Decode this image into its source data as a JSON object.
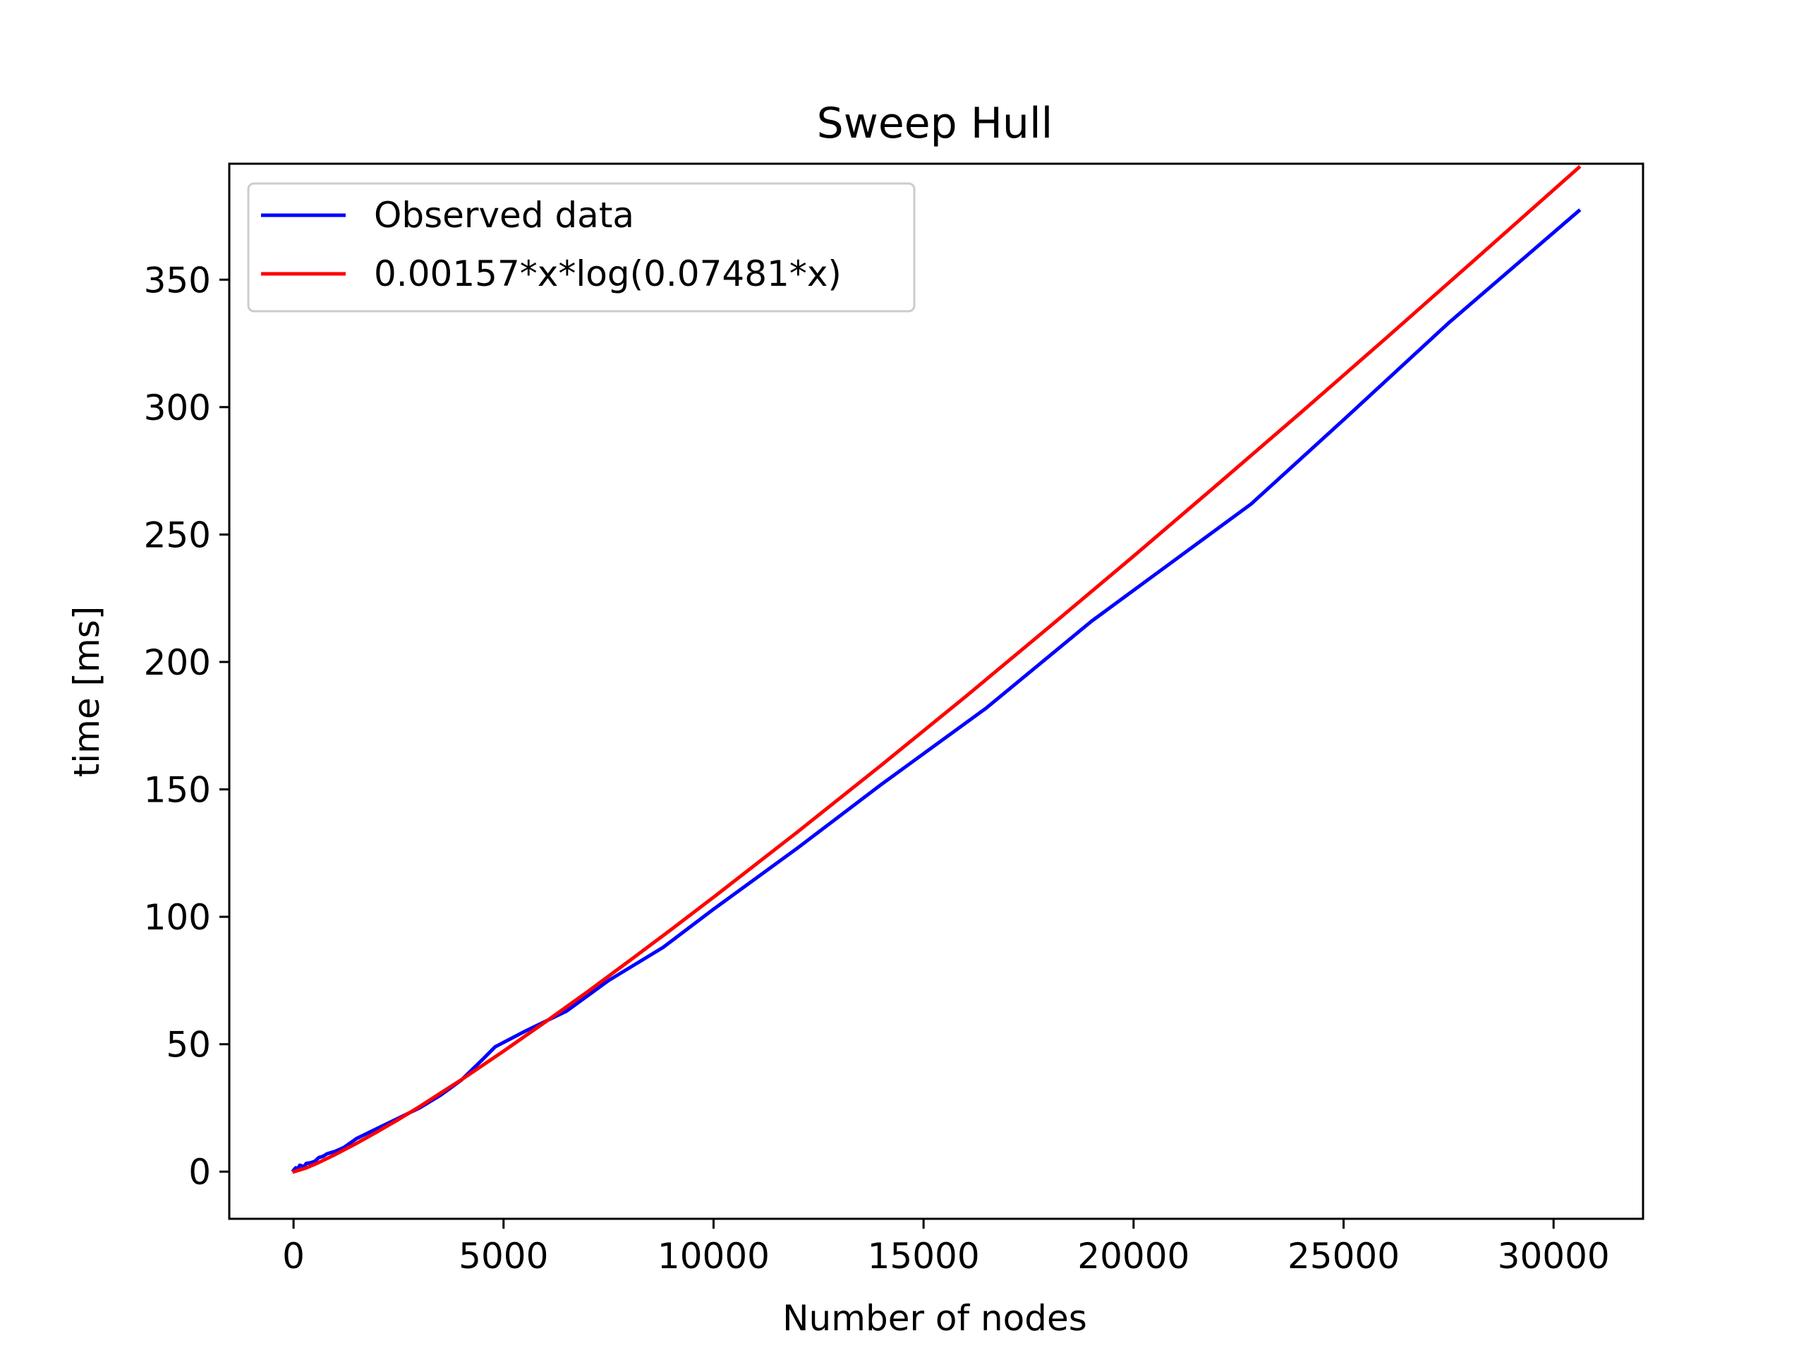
{
  "chart_data": {
    "type": "line",
    "title": "Sweep Hull",
    "xlabel": "Number of nodes",
    "ylabel": "time [ms]",
    "xlim": [
      -1530,
      32130
    ],
    "ylim": [
      -18.5,
      395.5
    ],
    "xticks": [
      0,
      5000,
      10000,
      15000,
      20000,
      25000,
      30000
    ],
    "xtick_labels": [
      "0",
      "5000",
      "10000",
      "15000",
      "20000",
      "25000",
      "30000"
    ],
    "yticks": [
      0,
      50,
      100,
      150,
      200,
      250,
      300,
      350
    ],
    "ytick_labels": [
      "0",
      "50",
      "100",
      "150",
      "200",
      "250",
      "300",
      "350"
    ],
    "grid": false,
    "legend_position": "upper-left",
    "series": [
      {
        "name": "Observed data",
        "color": "#0000ff",
        "style": "line",
        "x": [
          0,
          50,
          100,
          150,
          250,
          300,
          400,
          500,
          600,
          700,
          800,
          1000,
          1200,
          1500,
          2000,
          2500,
          3000,
          3500,
          4000,
          4500,
          4800,
          5500,
          6500,
          7500,
          8800,
          10000,
          12000,
          14000,
          16500,
          19000,
          22800,
          25000,
          27500,
          30600
        ],
        "y": [
          0.5,
          1.5,
          1.2,
          2.5,
          2.0,
          3.2,
          3.5,
          4.0,
          5.5,
          6.0,
          7.0,
          8.0,
          9.5,
          13.0,
          17.0,
          21.0,
          25.0,
          30.0,
          36.0,
          44.0,
          49.0,
          55.0,
          63.0,
          75.0,
          88.0,
          103.0,
          127.0,
          152.0,
          182.0,
          216.0,
          262.0,
          295.0,
          333.0,
          377.0
        ]
      },
      {
        "name": "0.00157*x*log(0.07481*x)",
        "color": "#ff0000",
        "style": "line",
        "x": [
          13.4,
          300,
          600,
          1000,
          1500,
          2000,
          2500,
          3000,
          4000,
          5000,
          6000,
          7000,
          8000,
          9000,
          10000,
          12000,
          14000,
          16000,
          18000,
          20000,
          22000,
          24000,
          26000,
          28000,
          30600
        ],
        "y": [
          0.0,
          1.45,
          3.56,
          6.77,
          11.1,
          15.7,
          20.5,
          25.5,
          36.1,
          47.3,
          58.8,
          70.6,
          82.8,
          95.1,
          107.7,
          133.3,
          159.6,
          186.4,
          213.8,
          241.5,
          269.7,
          298.1,
          326.9,
          356.0,
          394.0
        ]
      }
    ]
  }
}
